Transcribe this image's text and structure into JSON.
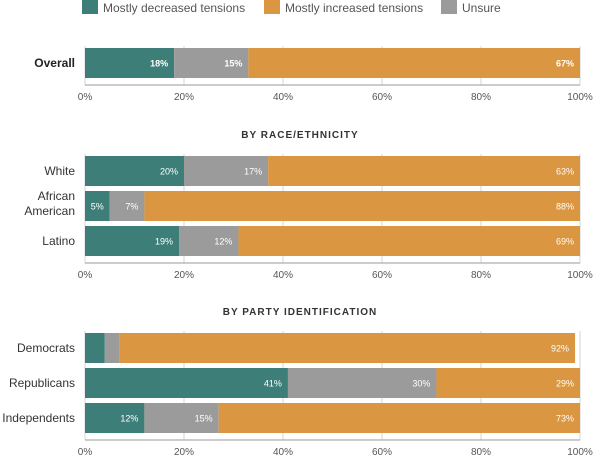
{
  "legend": [
    {
      "name": "Mostly decreased tensions",
      "color": "#3d7f78"
    },
    {
      "name": "Mostly increased tensions",
      "color": "#da9640"
    },
    {
      "name": "Unsure",
      "color": "#9b9b9b"
    }
  ],
  "chart_data": [
    {
      "type": "bar",
      "orientation": "horizontal",
      "stacked": true,
      "title": "",
      "categories": [
        "Overall"
      ],
      "series": [
        {
          "name": "Mostly decreased tensions",
          "values": [
            18
          ],
          "labels": [
            "18%"
          ]
        },
        {
          "name": "Unsure",
          "values": [
            15
          ],
          "labels": [
            "15%"
          ]
        },
        {
          "name": "Mostly increased tensions",
          "values": [
            67
          ],
          "labels": [
            "67%"
          ]
        }
      ],
      "xlim": [
        0,
        100
      ],
      "ticks": [
        "0%",
        "20%",
        "40%",
        "60%",
        "80%",
        "100%"
      ],
      "grid": true
    },
    {
      "type": "bar",
      "orientation": "horizontal",
      "stacked": true,
      "title": "BY RACE/ETHNICITY",
      "categories": [
        "White",
        "African American",
        "Latino"
      ],
      "series": [
        {
          "name": "Mostly decreased tensions",
          "values": [
            20,
            5,
            19
          ],
          "labels": [
            "20%",
            "5%",
            "19%"
          ]
        },
        {
          "name": "Unsure",
          "values": [
            17,
            7,
            12
          ],
          "labels": [
            "17%",
            "7%",
            "12%"
          ]
        },
        {
          "name": "Mostly increased tensions",
          "values": [
            63,
            88,
            69
          ],
          "labels": [
            "63%",
            "88%",
            "69%"
          ]
        }
      ],
      "xlim": [
        0,
        100
      ],
      "ticks": [
        "0%",
        "20%",
        "40%",
        "60%",
        "80%",
        "100%"
      ],
      "grid": true
    },
    {
      "type": "bar",
      "orientation": "horizontal",
      "stacked": true,
      "title": "BY PARTY IDENTIFICATION",
      "categories": [
        "Democrats",
        "Republicans",
        "Independents"
      ],
      "series": [
        {
          "name": "Mostly decreased tensions",
          "values": [
            4,
            41,
            12
          ],
          "labels": [
            "",
            "41%",
            "12%"
          ]
        },
        {
          "name": "Unsure",
          "values": [
            3,
            30,
            15
          ],
          "labels": [
            "",
            "30%",
            "15%"
          ]
        },
        {
          "name": "Mostly increased tensions",
          "values": [
            92,
            29,
            73
          ],
          "labels": [
            "92%",
            "29%",
            "73%"
          ]
        }
      ],
      "xlim": [
        0,
        100
      ],
      "ticks": [
        "0%",
        "20%",
        "40%",
        "60%",
        "80%",
        "100%"
      ],
      "grid": true
    }
  ]
}
